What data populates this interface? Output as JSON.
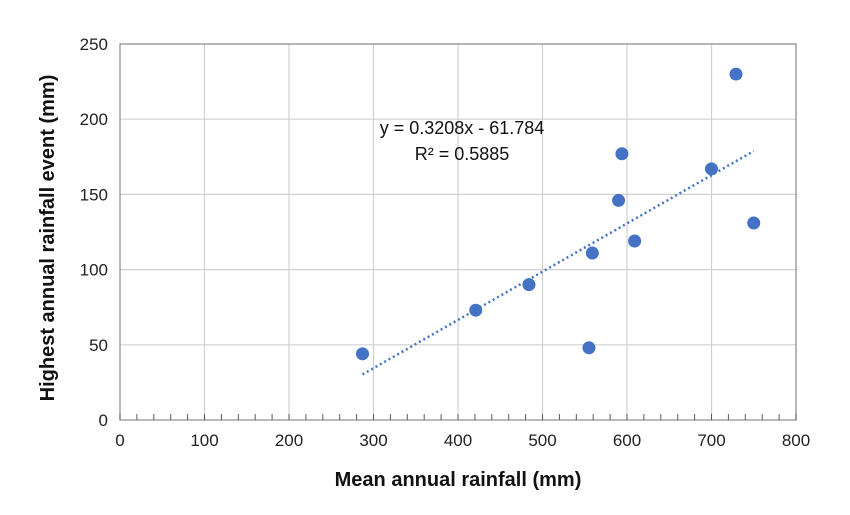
{
  "chart_data": {
    "type": "scatter",
    "xlabel": "Mean annual rainfall (mm)",
    "ylabel": "Highest annual rainfall  event (mm)",
    "xlim": [
      0,
      800
    ],
    "ylim": [
      0,
      250
    ],
    "x_ticks": [
      0,
      100,
      200,
      300,
      400,
      500,
      600,
      700,
      800
    ],
    "y_ticks": [
      0,
      50,
      100,
      150,
      200,
      250
    ],
    "grid": true,
    "legend": "none",
    "series": [
      {
        "points": [
          {
            "x": 287,
            "y": 44
          },
          {
            "x": 421,
            "y": 73
          },
          {
            "x": 484,
            "y": 90
          },
          {
            "x": 555,
            "y": 48
          },
          {
            "x": 559,
            "y": 111
          },
          {
            "x": 590,
            "y": 146
          },
          {
            "x": 594,
            "y": 177
          },
          {
            "x": 609,
            "y": 119
          },
          {
            "x": 700,
            "y": 167
          },
          {
            "x": 729,
            "y": 230
          },
          {
            "x": 750,
            "y": 131
          }
        ],
        "color": "#4472c4"
      }
    ],
    "trendline": {
      "type": "linear",
      "slope": 0.3208,
      "intercept": -61.784,
      "x_range": [
        287,
        750
      ],
      "style": "dotted",
      "color": "#4472c4",
      "equation_text": "y = 0.3208x - 61.784",
      "r2_text": "R² = 0.5885"
    }
  }
}
